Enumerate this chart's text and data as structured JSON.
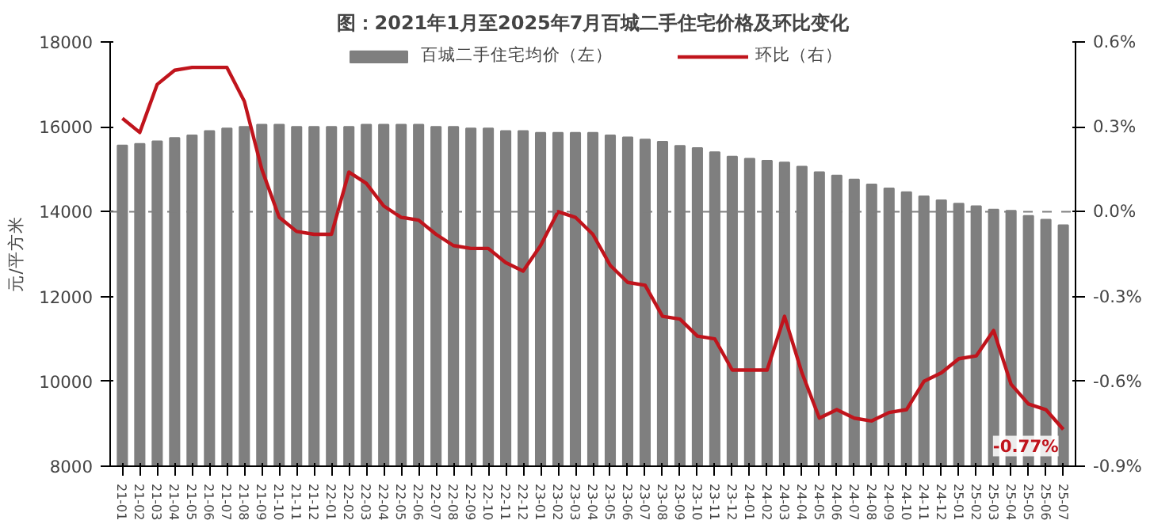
{
  "chart_data": {
    "type": "bar",
    "title": "图：2021年1月至2025年7月百城二手住宅价格及环比变化",
    "ylabel": "元/平方米",
    "categories": [
      "21-01",
      "21-02",
      "21-03",
      "21-04",
      "21-05",
      "21-06",
      "21-07",
      "21-08",
      "21-09",
      "21-10",
      "21-11",
      "21-12",
      "22-01",
      "22-02",
      "22-03",
      "22-04",
      "22-05",
      "22-06",
      "22-07",
      "22-08",
      "22-09",
      "22-10",
      "22-11",
      "22-12",
      "23-01",
      "23-02",
      "23-03",
      "23-04",
      "23-05",
      "23-06",
      "23-07",
      "23-08",
      "23-09",
      "23-10",
      "23-11",
      "23-12",
      "24-01",
      "24-02",
      "24-03",
      "24-04",
      "24-05",
      "24-06",
      "24-07",
      "24-08",
      "24-09",
      "24-10",
      "24-11",
      "24-12",
      "25-01",
      "25-02",
      "25-03",
      "25-04",
      "25-05",
      "25-06",
      "25-07"
    ],
    "series": [
      {
        "name": "百城二手住宅均价（左）",
        "color": "#7f7f7f",
        "values": [
          15560,
          15600,
          15660,
          15740,
          15800,
          15900,
          15960,
          16000,
          16050,
          16050,
          16000,
          16000,
          16000,
          16000,
          16050,
          16050,
          16050,
          16050,
          16000,
          16000,
          15960,
          15960,
          15900,
          15900,
          15860,
          15860,
          15860,
          15860,
          15800,
          15750,
          15700,
          15650,
          15550,
          15500,
          15400,
          15300,
          15250,
          15200,
          15160,
          15060,
          14930,
          14850,
          14760,
          14640,
          14550,
          14460,
          14360,
          14270,
          14190,
          14130,
          14050,
          14020,
          13900,
          13810,
          13680
        ]
      },
      {
        "name": "环比（右）",
        "type": "line",
        "axis": "y2",
        "color": "#c0141c",
        "values": [
          0.33,
          0.28,
          0.45,
          0.5,
          0.51,
          0.51,
          0.51,
          0.39,
          0.15,
          -0.02,
          -0.07,
          -0.08,
          -0.08,
          0.14,
          0.1,
          0.02,
          -0.02,
          -0.03,
          -0.08,
          -0.12,
          -0.13,
          -0.13,
          -0.18,
          -0.21,
          -0.12,
          0.0,
          -0.02,
          -0.08,
          -0.19,
          -0.25,
          -0.26,
          -0.37,
          -0.38,
          -0.44,
          -0.45,
          -0.56,
          -0.56,
          -0.56,
          -0.37,
          -0.57,
          -0.73,
          -0.7,
          -0.73,
          -0.74,
          -0.71,
          -0.7,
          -0.6,
          -0.57,
          -0.52,
          -0.51,
          -0.42,
          -0.61,
          -0.68,
          -0.7,
          -0.77
        ],
        "value_labels": [
          null,
          null,
          null,
          null,
          null,
          null,
          null,
          null,
          null,
          null,
          null,
          null,
          null,
          null,
          null,
          null,
          null,
          null,
          null,
          null,
          null,
          null,
          null,
          null,
          null,
          null,
          null,
          null,
          null,
          null,
          null,
          null,
          null,
          null,
          null,
          null,
          null,
          null,
          null,
          null,
          null,
          null,
          null,
          null,
          null,
          null,
          null,
          null,
          null,
          null,
          null,
          null,
          null,
          null,
          "-0.77%"
        ]
      }
    ],
    "ylim": [
      8000,
      18000
    ],
    "yticks": [
      8000,
      10000,
      12000,
      14000,
      16000,
      18000
    ],
    "y2lim": [
      -0.9,
      0.6
    ],
    "y2ticks": [
      {
        "value": -0.9,
        "label": "-0.9%"
      },
      {
        "value": -0.6,
        "label": "-0.6%"
      },
      {
        "value": -0.3,
        "label": "-0.3%"
      },
      {
        "value": 0.0,
        "label": "0.0%"
      },
      {
        "value": 0.3,
        "label": "0.3%"
      },
      {
        "value": 0.6,
        "label": "0.6%"
      }
    ],
    "ref_lines": [
      {
        "axis": "y2",
        "value": 0.0,
        "label": null,
        "color": "#7f7f7f",
        "line_style": "dashed"
      }
    ],
    "grid": false,
    "legend": "top",
    "marker": "none",
    "line_style": "solid"
  }
}
